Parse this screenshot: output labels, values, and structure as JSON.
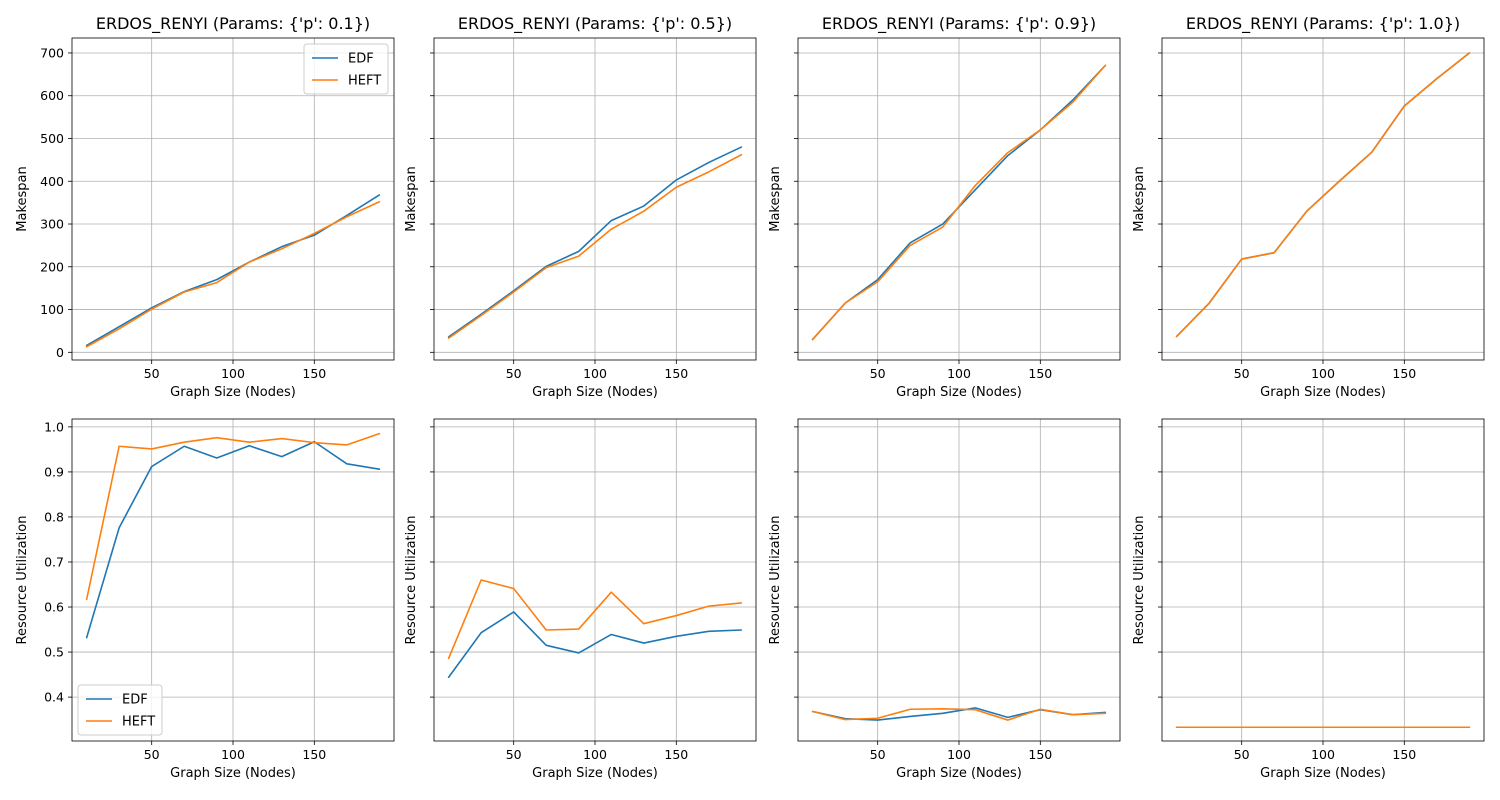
{
  "figure": {
    "colors": {
      "EDF": "#1f77b4",
      "HEFT": "#ff7f0e",
      "grid": "#b0b0b0"
    }
  },
  "chart_data": [
    {
      "type": "line",
      "title": "ERDOS_RENYI (Params: {'p': 0.1})",
      "xlabel": "Graph Size (Nodes)",
      "ylabel": "Makespan",
      "xlim": [
        1,
        199
      ],
      "ylim": [
        -18,
        735
      ],
      "xticks": [
        50,
        100,
        150
      ],
      "yticks": [
        0,
        100,
        200,
        300,
        400,
        500,
        600,
        700
      ],
      "show_yticklabels": true,
      "show_ylabel": true,
      "grid": true,
      "legend": "top-right",
      "x": [
        10,
        30,
        50,
        70,
        90,
        110,
        130,
        150,
        170,
        190
      ],
      "series": [
        {
          "name": "EDF",
          "values": [
            16,
            60,
            104,
            142,
            170,
            211,
            247,
            274,
            320,
            368
          ]
        },
        {
          "name": "HEFT",
          "values": [
            13,
            55,
            101,
            141,
            163,
            211,
            242,
            278,
            317,
            352
          ]
        }
      ]
    },
    {
      "type": "line",
      "title": "ERDOS_RENYI (Params: {'p': 0.5})",
      "xlabel": "Graph Size (Nodes)",
      "ylabel": "Makespan",
      "xlim": [
        1,
        199
      ],
      "ylim": [
        -18,
        735
      ],
      "xticks": [
        50,
        100,
        150
      ],
      "yticks": [
        0,
        100,
        200,
        300,
        400,
        500,
        600,
        700
      ],
      "show_yticklabels": false,
      "show_ylabel": true,
      "grid": true,
      "legend": "none",
      "x": [
        10,
        30,
        50,
        70,
        90,
        110,
        130,
        150,
        170,
        190
      ],
      "series": [
        {
          "name": "EDF",
          "values": [
            36,
            89,
            144,
            201,
            236,
            308,
            342,
            403,
            444,
            480
          ]
        },
        {
          "name": "HEFT",
          "values": [
            33,
            86,
            141,
            198,
            225,
            288,
            330,
            386,
            422,
            462
          ]
        }
      ]
    },
    {
      "type": "line",
      "title": "ERDOS_RENYI (Params: {'p': 0.9})",
      "xlabel": "Graph Size (Nodes)",
      "ylabel": "Makespan",
      "xlim": [
        1,
        199
      ],
      "ylim": [
        -18,
        735
      ],
      "xticks": [
        50,
        100,
        150
      ],
      "yticks": [
        0,
        100,
        200,
        300,
        400,
        500,
        600,
        700
      ],
      "show_yticklabels": false,
      "show_ylabel": true,
      "grid": true,
      "legend": "none",
      "x": [
        10,
        30,
        50,
        70,
        90,
        110,
        130,
        150,
        170,
        190
      ],
      "series": [
        {
          "name": "EDF",
          "values": [
            30,
            115,
            170,
            256,
            300,
            380,
            460,
            520,
            590,
            671
          ]
        },
        {
          "name": "HEFT",
          "values": [
            30,
            115,
            165,
            250,
            293,
            390,
            467,
            520,
            585,
            671
          ]
        }
      ]
    },
    {
      "type": "line",
      "title": "ERDOS_RENYI (Params: {'p': 1.0})",
      "xlabel": "Graph Size (Nodes)",
      "ylabel": "Makespan",
      "xlim": [
        1,
        199
      ],
      "ylim": [
        -18,
        735
      ],
      "xticks": [
        50,
        100,
        150
      ],
      "yticks": [
        0,
        100,
        200,
        300,
        400,
        500,
        600,
        700
      ],
      "show_yticklabels": false,
      "show_ylabel": true,
      "grid": true,
      "legend": "none",
      "x": [
        10,
        30,
        50,
        70,
        90,
        110,
        130,
        150,
        170,
        190
      ],
      "series": [
        {
          "name": "EDF",
          "values": [
            37,
            115,
            218,
            233,
            330,
            400,
            468,
            576,
            640,
            700
          ]
        },
        {
          "name": "HEFT",
          "values": [
            37,
            115,
            218,
            233,
            330,
            400,
            468,
            576,
            640,
            700
          ]
        }
      ]
    },
    {
      "type": "line",
      "title": "",
      "xlabel": "Graph Size (Nodes)",
      "ylabel": "Resource Utilization",
      "xlim": [
        1,
        199
      ],
      "ylim": [
        0.3025,
        1.0175
      ],
      "xticks": [
        50,
        100,
        150
      ],
      "yticks": [
        0.4,
        0.5,
        0.6,
        0.7,
        0.8,
        0.9,
        1.0
      ],
      "show_yticklabels": true,
      "show_ylabel": true,
      "grid": true,
      "legend": "bottom-left",
      "x": [
        10,
        30,
        50,
        70,
        90,
        110,
        130,
        150,
        170,
        190
      ],
      "series": [
        {
          "name": "EDF",
          "values": [
            0.532,
            0.776,
            0.912,
            0.957,
            0.931,
            0.958,
            0.934,
            0.967,
            0.918,
            0.906
          ]
        },
        {
          "name": "HEFT",
          "values": [
            0.617,
            0.957,
            0.951,
            0.966,
            0.976,
            0.966,
            0.974,
            0.965,
            0.96,
            0.985
          ]
        }
      ]
    },
    {
      "type": "line",
      "title": "",
      "xlabel": "Graph Size (Nodes)",
      "ylabel": "Resource Utilization",
      "xlim": [
        1,
        199
      ],
      "ylim": [
        0.3025,
        1.0175
      ],
      "xticks": [
        50,
        100,
        150
      ],
      "yticks": [
        0.4,
        0.5,
        0.6,
        0.7,
        0.8,
        0.9,
        1.0
      ],
      "show_yticklabels": false,
      "show_ylabel": true,
      "grid": true,
      "legend": "none",
      "x": [
        10,
        30,
        50,
        70,
        90,
        110,
        130,
        150,
        170,
        190
      ],
      "series": [
        {
          "name": "EDF",
          "values": [
            0.444,
            0.543,
            0.589,
            0.515,
            0.498,
            0.539,
            0.52,
            0.535,
            0.546,
            0.549
          ]
        },
        {
          "name": "HEFT",
          "values": [
            0.486,
            0.66,
            0.641,
            0.549,
            0.551,
            0.633,
            0.563,
            0.581,
            0.602,
            0.609
          ]
        }
      ]
    },
    {
      "type": "line",
      "title": "",
      "xlabel": "Graph Size (Nodes)",
      "ylabel": "Resource Utilization",
      "xlim": [
        1,
        199
      ],
      "ylim": [
        0.3025,
        1.0175
      ],
      "xticks": [
        50,
        100,
        150
      ],
      "yticks": [
        0.4,
        0.5,
        0.6,
        0.7,
        0.8,
        0.9,
        1.0
      ],
      "show_yticklabels": false,
      "show_ylabel": true,
      "grid": true,
      "legend": "none",
      "x": [
        10,
        30,
        50,
        70,
        90,
        110,
        130,
        150,
        170,
        190
      ],
      "series": [
        {
          "name": "EDF",
          "values": [
            0.368,
            0.352,
            0.349,
            0.357,
            0.364,
            0.376,
            0.355,
            0.372,
            0.361,
            0.366
          ]
        },
        {
          "name": "HEFT",
          "values": [
            0.368,
            0.35,
            0.353,
            0.373,
            0.374,
            0.372,
            0.349,
            0.373,
            0.361,
            0.364
          ]
        }
      ]
    },
    {
      "type": "line",
      "title": "",
      "xlabel": "Graph Size (Nodes)",
      "ylabel": "Resource Utilization",
      "xlim": [
        1,
        199
      ],
      "ylim": [
        0.3025,
        1.0175
      ],
      "xticks": [
        50,
        100,
        150
      ],
      "yticks": [
        0.4,
        0.5,
        0.6,
        0.7,
        0.8,
        0.9,
        1.0
      ],
      "show_yticklabels": false,
      "show_ylabel": true,
      "grid": true,
      "legend": "none",
      "x": [
        10,
        30,
        50,
        70,
        90,
        110,
        130,
        150,
        170,
        190
      ],
      "series": [
        {
          "name": "EDF",
          "values": [
            0.333,
            0.333,
            0.333,
            0.333,
            0.333,
            0.333,
            0.333,
            0.333,
            0.333,
            0.333
          ]
        },
        {
          "name": "HEFT",
          "values": [
            0.333,
            0.333,
            0.333,
            0.333,
            0.333,
            0.333,
            0.333,
            0.333,
            0.333,
            0.333
          ]
        }
      ]
    }
  ]
}
